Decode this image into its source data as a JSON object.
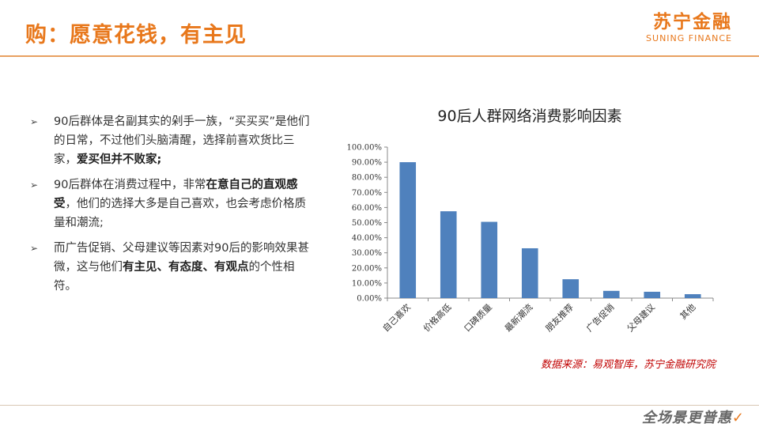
{
  "header": {
    "title": "购：愿意花钱，有主见",
    "logo_cn": "苏宁金融",
    "logo_en": "SUNING FINANCE"
  },
  "bullets": [
    {
      "parts": [
        {
          "text": "90后群体是名副其实的剁手一族，“买买买”是他们的日常，不过他们头脑清醒，选择前喜欢货比三家，",
          "bold": false
        },
        {
          "text": "爱买但并不败家;",
          "bold": true
        }
      ]
    },
    {
      "parts": [
        {
          "text": "90后群体在消费过程中，非常",
          "bold": false
        },
        {
          "text": "在意自己的直观感受",
          "bold": true
        },
        {
          "text": "，他们的选择大多是自己喜欢，也会考虑价格质量和潮流;",
          "bold": false
        }
      ]
    },
    {
      "parts": [
        {
          "text": "而广告促销、父母建议等因素对90后的影响效果甚微，这与他们",
          "bold": false
        },
        {
          "text": "有主见、有态度、有观点",
          "bold": true
        },
        {
          "text": "的个性相符。",
          "bold": false
        }
      ]
    }
  ],
  "chart_data": {
    "type": "bar",
    "title": "90后人群网络消费影响因素",
    "categories": [
      "自己喜欢",
      "价格高低",
      "口碑质量",
      "最新潮流",
      "朋友推荐",
      "广告促销",
      "父母建议",
      "其他"
    ],
    "values": [
      0.9,
      0.575,
      0.505,
      0.33,
      0.125,
      0.048,
      0.042,
      0.026
    ],
    "ylim": [
      0,
      1
    ],
    "yticks": [
      0,
      0.1,
      0.2,
      0.3,
      0.4,
      0.5,
      0.6,
      0.7,
      0.8,
      0.9,
      1.0
    ],
    "ytick_labels": [
      "0.00%",
      "10.00%",
      "20.00%",
      "30.00%",
      "40.00%",
      "50.00%",
      "60.00%",
      "70.00%",
      "80.00%",
      "90.00%",
      "100.00%"
    ],
    "bar_color": "#4f81bd",
    "grid": false,
    "legend": "none"
  },
  "source_text": "数据来源：易观智库，苏宁金融研究院",
  "footer_logo": "全场景更普惠",
  "colors": {
    "accent": "#e8781c",
    "source": "#c00000"
  }
}
